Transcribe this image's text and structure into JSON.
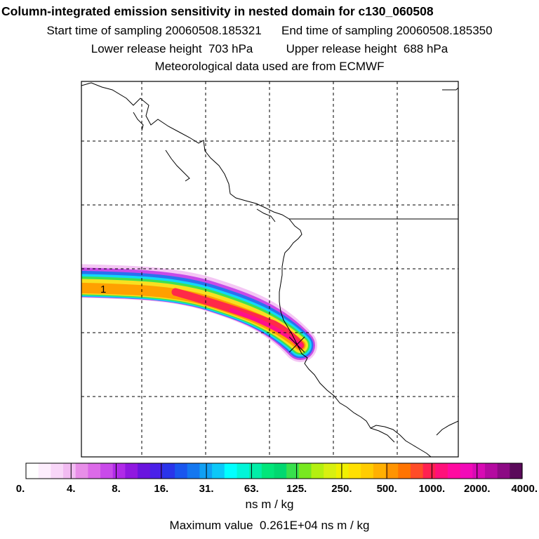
{
  "header": {
    "title": "Column-integrated emission sensitivity in nested domain for c130_060508",
    "start_label": "Start time of sampling 20060508.185321",
    "end_label": "End time of sampling 20060508.185350",
    "lower_label": "Lower release height  703 hPa",
    "upper_label": "Upper release height  688 hPa",
    "met_label": "Meteorological data used are from ECMWF"
  },
  "chart_data": {
    "type": "heatmap",
    "title": "Column-integrated emission sensitivity in nested domain for c130_060508",
    "colorbar_ticks": [
      "0.",
      "4.",
      "8.",
      "16.",
      "31.",
      "63.",
      "125.",
      "250.",
      "500.",
      "1000.",
      "2000.",
      "4000."
    ],
    "colorbar_colors": [
      "#ffffff",
      "#fdeefd",
      "#f8d6f8",
      "#f2bbf2",
      "#e88ee8",
      "#dc6ae8",
      "#c94aea",
      "#b02ae8",
      "#9018e0",
      "#6a14de",
      "#4a20e8",
      "#2a34ea",
      "#1a56ee",
      "#1477f0",
      "#10a0f4",
      "#0cc8f8",
      "#00ffff",
      "#00f5d8",
      "#00eea8",
      "#00e67a",
      "#00d870",
      "#38e04c",
      "#78e820",
      "#b4f010",
      "#d8f010",
      "#f0f000",
      "#ffe000",
      "#ffcc00",
      "#ffb000",
      "#ff9400",
      "#ff7400",
      "#ff4c28",
      "#ff2050",
      "#ff107a",
      "#ff0aa0",
      "#f20ab8",
      "#d80ab4",
      "#b40aa0",
      "#8c0a84",
      "#5a0a5a"
    ],
    "units": "ns m / kg",
    "max_value_text": "Maximum value  0.261E+04 ns m / kg",
    "max_value": 2610,
    "plume_label": "1",
    "release_marker": "X"
  }
}
